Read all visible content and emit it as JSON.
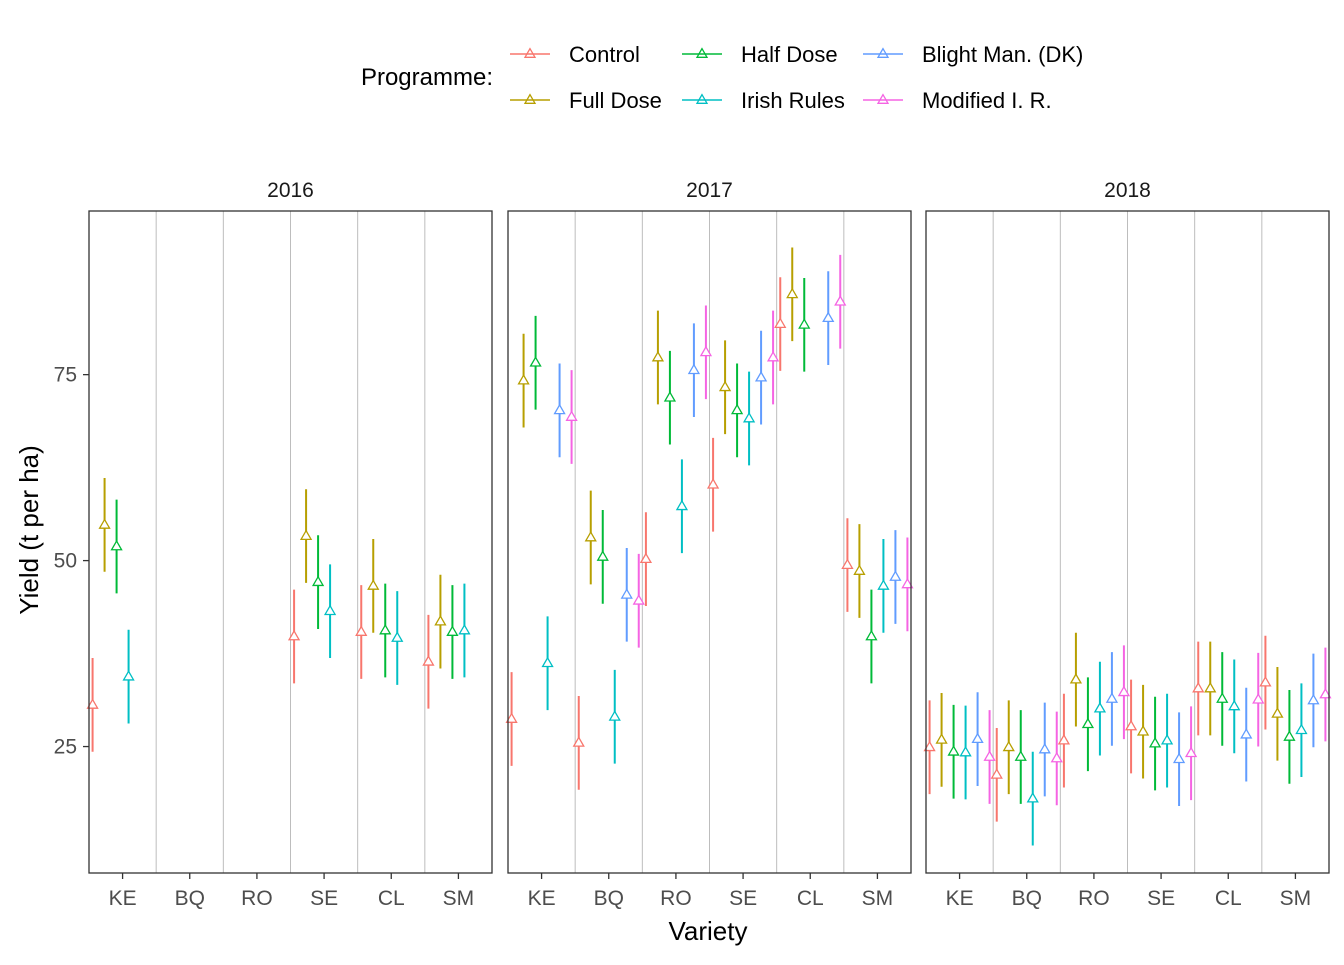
{
  "chart_data": {
    "type": "errorbar",
    "xlabel": "Variety",
    "ylabel": "Yield (t per ha)",
    "legend": {
      "title": "Programme:",
      "position": "top",
      "entries": [
        "Control",
        "Full Dose",
        "Half Dose",
        "Irish Rules",
        "Blight Man. (DK)",
        "Modified I. R."
      ]
    },
    "colors": {
      "Control": "#F8766D",
      "Full Dose": "#B79F00",
      "Half Dose": "#00BA38",
      "Irish Rules": "#00BFC4",
      "Blight Man. (DK)": "#619CFF",
      "Modified I. R.": "#F564E3"
    },
    "categories": [
      "KE",
      "BQ",
      "RO",
      "SE",
      "CL",
      "SM"
    ],
    "ylim": [
      8,
      97
    ],
    "yticks": [
      25,
      50,
      75
    ],
    "error_halfwidth": 6.3,
    "grid": "vertical separators between varieties",
    "panels": [
      {
        "label": "2016",
        "series": [
          {
            "name": "Control",
            "values": [
              30.6,
              null,
              null,
              39.8,
              40.4,
              36.4
            ]
          },
          {
            "name": "Full Dose",
            "values": [
              54.8,
              null,
              null,
              53.3,
              46.6,
              41.8
            ]
          },
          {
            "name": "Half Dose",
            "values": [
              51.9,
              null,
              null,
              47.1,
              40.6,
              40.4
            ]
          },
          {
            "name": "Irish Rules",
            "values": [
              34.4,
              null,
              null,
              43.2,
              39.6,
              40.6
            ]
          },
          {
            "name": "Blight Man. (DK)",
            "values": [
              null,
              null,
              null,
              null,
              null,
              null
            ]
          },
          {
            "name": "Modified I. R.",
            "values": [
              null,
              null,
              null,
              null,
              null,
              null
            ]
          }
        ]
      },
      {
        "label": "2017",
        "series": [
          {
            "name": "Control",
            "values": [
              28.7,
              25.5,
              50.2,
              60.2,
              81.8,
              49.4
            ]
          },
          {
            "name": "Full Dose",
            "values": [
              74.2,
              53.1,
              77.3,
              73.3,
              85.8,
              48.6
            ]
          },
          {
            "name": "Half Dose",
            "values": [
              76.6,
              50.5,
              71.9,
              70.2,
              81.7,
              39.8
            ]
          },
          {
            "name": "Irish Rules",
            "values": [
              36.2,
              29.0,
              57.3,
              69.1,
              null,
              46.6
            ]
          },
          {
            "name": "Blight Man. (DK)",
            "values": [
              70.2,
              45.4,
              75.6,
              74.6,
              82.6,
              47.8
            ]
          },
          {
            "name": "Modified I. R.",
            "values": [
              69.3,
              44.6,
              78.0,
              77.3,
              84.8,
              46.8
            ]
          }
        ]
      },
      {
        "label": "2018",
        "series": [
          {
            "name": "Control",
            "values": [
              24.9,
              21.2,
              25.8,
              27.7,
              32.8,
              33.6
            ]
          },
          {
            "name": "Full Dose",
            "values": [
              25.9,
              24.9,
              34.0,
              27.0,
              32.8,
              29.4
            ]
          },
          {
            "name": "Half Dose",
            "values": [
              24.3,
              23.6,
              28.0,
              25.4,
              31.4,
              26.3
            ]
          },
          {
            "name": "Irish Rules",
            "values": [
              24.2,
              18.0,
              30.1,
              25.8,
              30.4,
              27.2
            ]
          },
          {
            "name": "Blight Man. (DK)",
            "values": [
              26.0,
              24.6,
              31.4,
              23.3,
              26.6,
              31.2
            ]
          },
          {
            "name": "Modified I. R.",
            "values": [
              23.6,
              23.4,
              32.3,
              24.1,
              31.3,
              32.0
            ]
          }
        ]
      }
    ]
  }
}
